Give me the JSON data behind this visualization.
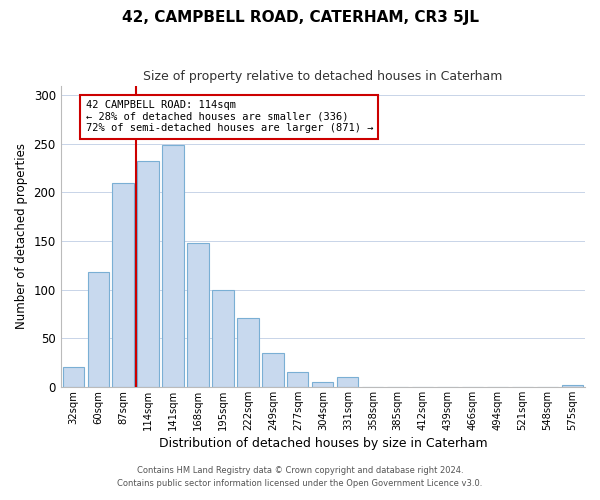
{
  "title": "42, CAMPBELL ROAD, CATERHAM, CR3 5JL",
  "subtitle": "Size of property relative to detached houses in Caterham",
  "xlabel": "Distribution of detached houses by size in Caterham",
  "ylabel": "Number of detached properties",
  "bar_labels": [
    "32sqm",
    "60sqm",
    "87sqm",
    "114sqm",
    "141sqm",
    "168sqm",
    "195sqm",
    "222sqm",
    "249sqm",
    "277sqm",
    "304sqm",
    "331sqm",
    "358sqm",
    "385sqm",
    "412sqm",
    "439sqm",
    "466sqm",
    "494sqm",
    "521sqm",
    "548sqm",
    "575sqm"
  ],
  "bar_heights": [
    20,
    118,
    210,
    232,
    249,
    148,
    100,
    71,
    35,
    15,
    5,
    10,
    0,
    0,
    0,
    0,
    0,
    0,
    0,
    0,
    2
  ],
  "bar_color": "#c8d9ee",
  "bar_edge_color": "#7aafd4",
  "vline_color": "#cc0000",
  "annotation_line1": "42 CAMPBELL ROAD: 114sqm",
  "annotation_line2": "← 28% of detached houses are smaller (336)",
  "annotation_line3": "72% of semi-detached houses are larger (871) →",
  "annotation_box_edge": "#cc0000",
  "ylim": [
    0,
    310
  ],
  "yticks": [
    0,
    50,
    100,
    150,
    200,
    250,
    300
  ],
  "footer1": "Contains HM Land Registry data © Crown copyright and database right 2024.",
  "footer2": "Contains public sector information licensed under the Open Government Licence v3.0.",
  "bg_color": "#ffffff",
  "grid_color": "#c8d4e8"
}
